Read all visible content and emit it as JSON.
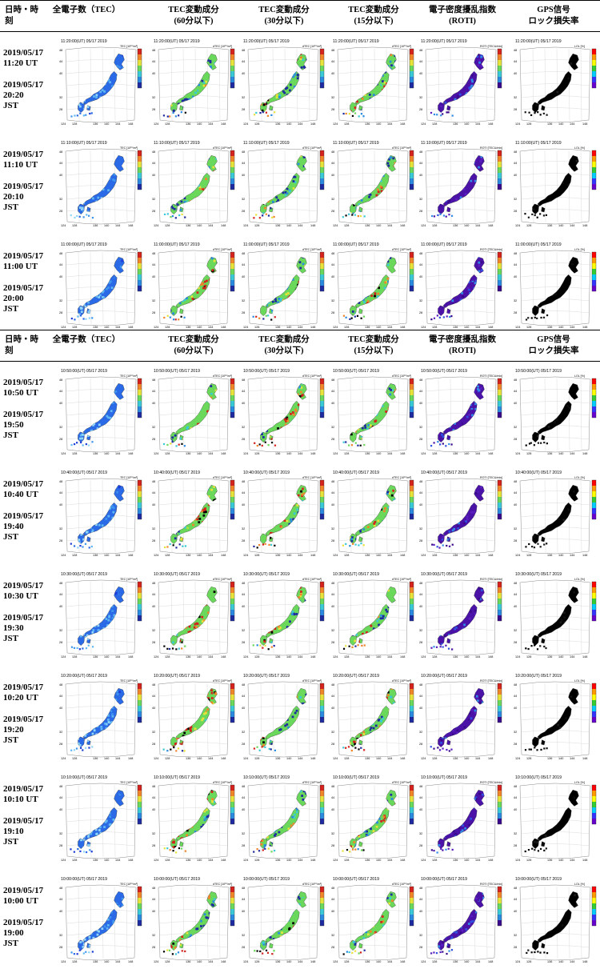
{
  "headers": [
    {
      "label_line1": "日時・時",
      "label_line2": "刻"
    },
    {
      "label_line1": "全電子数（TEC）",
      "label_line2": ""
    },
    {
      "label_line1": "TEC変動成分",
      "label_line2": "(60分以下)"
    },
    {
      "label_line1": "TEC変動成分",
      "label_line2": "(30分以下)"
    },
    {
      "label_line1": "TEC変動成分",
      "label_line2": "(15分以下)"
    },
    {
      "label_line1": "電子密度擾乱指数",
      "label_line2": "(ROTI)"
    },
    {
      "label_line1": "GPS信号",
      "label_line2": "ロック損失率"
    }
  ],
  "sections": [
    {
      "rows": [
        {
          "ut_date": "2019/05/17",
          "ut_time": "11:20 UT",
          "jst_date": "2019/05/17",
          "jst_time": "20:20",
          "jst_tz": "JST",
          "panel_title": "11:20:00(UT)  05/17 2019"
        },
        {
          "ut_date": "2019/05/17",
          "ut_time": "11:10 UT",
          "jst_date": "2019/05/17",
          "jst_time": "20:10",
          "jst_tz": "JST",
          "panel_title": "11:10:00(UT)  05/17 2019"
        },
        {
          "ut_date": "2019/05/17",
          "ut_time": "11:00 UT",
          "jst_date": "2019/05/17",
          "jst_time": "20:00",
          "jst_tz": "JST",
          "panel_title": "11:00:00(UT)  05/17 2019"
        }
      ]
    },
    {
      "rows": [
        {
          "ut_date": "2019/05/17",
          "ut_time": "10:50 UT",
          "jst_date": "2019/05/17",
          "jst_time": "19:50",
          "jst_tz": "JST",
          "panel_title": "10:50:00(UT)  05/17 2019"
        },
        {
          "ut_date": "2019/05/17",
          "ut_time": "10:40 UT",
          "jst_date": "2019/05/17",
          "jst_time": "19:40",
          "jst_tz": "JST",
          "panel_title": "10:40:00(UT)  05/17 2019"
        },
        {
          "ut_date": "2019/05/17",
          "ut_time": "10:30 UT",
          "jst_date": "2019/05/17",
          "jst_time": "19:30",
          "jst_tz": "JST",
          "panel_title": "10:30:00(UT)  05/17 2019"
        },
        {
          "ut_date": "2019/05/17",
          "ut_time": "10:20 UT",
          "jst_date": "2019/05/17",
          "jst_time": "19:20",
          "jst_tz": "JST",
          "panel_title": "10:20:00(UT)  05/17 2019"
        },
        {
          "ut_date": "2019/05/17",
          "ut_time": "10:10 UT",
          "jst_date": "2019/05/17",
          "jst_time": "19:10",
          "jst_tz": "JST",
          "panel_title": "10:10:00(UT)  05/17 2019"
        },
        {
          "ut_date": "2019/05/17",
          "ut_time": "10:00 UT",
          "jst_date": "2019/05/17",
          "jst_time": "19:00",
          "jst_tz": "JST",
          "panel_title": "10:00:00(UT)  05/17 2019"
        }
      ]
    }
  ],
  "panel_colorbar_labels": [
    "TEC [10¹⁶/m²]",
    "dTEC [10¹⁶/m²]",
    "dTEC [10¹⁶/m²]",
    "dTEC [10¹⁶/m²]",
    "ROTI [TECU/min]",
    "LOL [%]"
  ],
  "map_lat_labels": [
    "48",
    "44",
    "40",
    "36",
    "32",
    "28",
    "24"
  ],
  "map_lon_labels": [
    "124",
    "128",
    "132",
    "136",
    "140",
    "144",
    "148"
  ],
  "palettes": {
    "tec": [
      "#1e3cd8",
      "#2a6ae6",
      "#3f96ee",
      "#5fb8f4",
      "#8fd6f8"
    ],
    "dtec": [
      "#1e2aa0",
      "#2a8ae0",
      "#39c9d7",
      "#6ad85a",
      "#e8e33a",
      "#f0852a",
      "#d4221c",
      "#000000"
    ],
    "roti": [
      "#3a0a8c",
      "#4b12a8",
      "#5a1ec0",
      "#3050e0",
      "#2f8de8"
    ],
    "lol": [
      "#000000",
      "#0d0d0d",
      "#1a1a1a"
    ]
  }
}
